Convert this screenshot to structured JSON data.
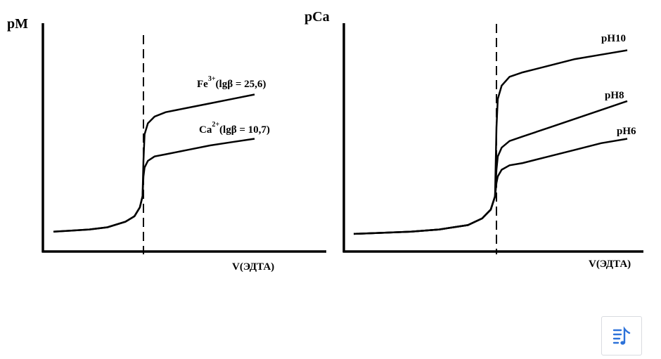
{
  "chart_data": [
    {
      "type": "line",
      "ylabel": "pM",
      "xlabel": "V(ЭДТА)",
      "equivalence_line": "dashed",
      "series": [
        {
          "name_main": "Fe",
          "name_sup": "3+",
          "name_rest": "(lgβ = 25,6)",
          "x": [
            0,
            0.1,
            0.2,
            0.3,
            0.4,
            0.45,
            0.48,
            0.495,
            0.5,
            0.505,
            0.52,
            0.55,
            0.6,
            0.7,
            0.8,
            0.9,
            1.0
          ],
          "y": [
            0.08,
            0.085,
            0.09,
            0.1,
            0.125,
            0.15,
            0.19,
            0.24,
            0.4,
            0.52,
            0.57,
            0.6,
            0.62,
            0.64,
            0.66,
            0.68,
            0.7
          ]
        },
        {
          "name_main": "Ca",
          "name_sup": "2+",
          "name_rest": "(lgβ = 10,7)",
          "x": [
            0,
            0.1,
            0.2,
            0.3,
            0.4,
            0.45,
            0.48,
            0.495,
            0.5,
            0.505,
            0.52,
            0.55,
            0.6,
            0.7,
            0.8,
            0.9,
            1.0
          ],
          "y": [
            0.08,
            0.085,
            0.09,
            0.1,
            0.125,
            0.15,
            0.19,
            0.24,
            0.33,
            0.37,
            0.4,
            0.42,
            0.43,
            0.45,
            0.47,
            0.485,
            0.5
          ]
        }
      ]
    },
    {
      "type": "line",
      "ylabel": "pCa",
      "xlabel": "V(ЭДТА)",
      "equivalence_line": "dashed",
      "series": [
        {
          "name": "pH10",
          "x": [
            0,
            0.1,
            0.2,
            0.3,
            0.4,
            0.45,
            0.48,
            0.495,
            0.5,
            0.505,
            0.52,
            0.55,
            0.6,
            0.7,
            0.8,
            0.9,
            1.0
          ],
          "y": [
            0.07,
            0.075,
            0.08,
            0.09,
            0.11,
            0.14,
            0.18,
            0.24,
            0.55,
            0.68,
            0.74,
            0.78,
            0.8,
            0.83,
            0.86,
            0.88,
            0.9
          ]
        },
        {
          "name": "pH8",
          "x": [
            0,
            0.1,
            0.2,
            0.3,
            0.4,
            0.45,
            0.48,
            0.495,
            0.5,
            0.505,
            0.52,
            0.55,
            0.6,
            0.7,
            0.8,
            0.9,
            1.0
          ],
          "y": [
            0.07,
            0.075,
            0.08,
            0.09,
            0.11,
            0.14,
            0.18,
            0.24,
            0.36,
            0.42,
            0.46,
            0.49,
            0.51,
            0.55,
            0.59,
            0.63,
            0.67
          ]
        },
        {
          "name": "pH6",
          "x": [
            0,
            0.1,
            0.2,
            0.3,
            0.4,
            0.45,
            0.48,
            0.495,
            0.5,
            0.505,
            0.52,
            0.55,
            0.6,
            0.7,
            0.8,
            0.9,
            1.0
          ],
          "y": [
            0.07,
            0.075,
            0.08,
            0.09,
            0.11,
            0.14,
            0.18,
            0.24,
            0.3,
            0.33,
            0.36,
            0.38,
            0.39,
            0.42,
            0.45,
            0.48,
            0.5
          ]
        }
      ]
    }
  ],
  "toolbar": {
    "button_icon": "music-list-icon",
    "icon_color": "#2d72d9"
  }
}
